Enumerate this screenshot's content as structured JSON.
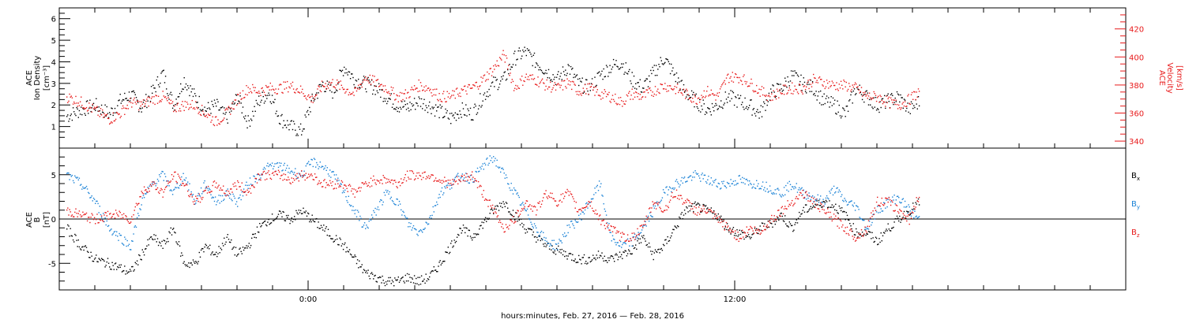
{
  "colors": {
    "black": "#000000",
    "red": "#e8191a",
    "blue": "#1a82d6",
    "background": "#ffffff"
  },
  "xaxis": {
    "label": "hours:minutes, Feb. 27, 2016 — Feb. 28, 2016",
    "range_hours": [
      -7,
      23
    ],
    "ticks": [
      {
        "value": 0,
        "label": "0:00"
      },
      {
        "value": 12,
        "label": "12:00"
      }
    ]
  },
  "chart_data": [
    {
      "type": "scatter",
      "ylabel_lines": [
        "ACE",
        "Ion Density",
        "[cm⁻³]"
      ],
      "ylim": [
        0,
        6.5
      ],
      "yticks": [
        1,
        2,
        3,
        4,
        5,
        6
      ],
      "y2label_lines": [
        "ACE",
        "Velocity",
        "[km/s]"
      ],
      "y2lim": [
        335,
        435
      ],
      "y2ticks": [
        340,
        360,
        380,
        400,
        420
      ],
      "series": [
        {
          "name": "",
          "color": "black",
          "axis": "left",
          "x": [
            -6.8,
            -6.4,
            -6.0,
            -5.6,
            -5.3,
            -5.0,
            -4.7,
            -4.4,
            -4.1,
            -3.8,
            -3.5,
            -3.2,
            -2.9,
            -2.6,
            -2.3,
            -2.0,
            -1.7,
            -1.4,
            -1.1,
            -0.8,
            -0.5,
            -0.2,
            0.1,
            0.4,
            0.7,
            1.0,
            1.3,
            1.6,
            1.9,
            2.2,
            2.5,
            2.8,
            3.1,
            3.4,
            3.7,
            4.0,
            4.3,
            4.6,
            4.9,
            5.2,
            5.5,
            5.8,
            6.1,
            6.4,
            6.7,
            7.0,
            7.3,
            7.6,
            7.9,
            8.2,
            8.5,
            8.8,
            9.1,
            9.4,
            9.7,
            10.0,
            10.3,
            10.6,
            10.9,
            11.2,
            11.5,
            11.8,
            12.1,
            12.4,
            12.7,
            13.0,
            13.3,
            13.6,
            13.9,
            14.2,
            14.5,
            14.8,
            15.1,
            15.4,
            15.7,
            16.0,
            16.3,
            16.6,
            16.9,
            17.2
          ],
          "y": [
            1.5,
            1.8,
            2.0,
            1.6,
            2.2,
            2.5,
            1.9,
            2.6,
            3.5,
            2.0,
            3.2,
            2.4,
            1.8,
            2.0,
            1.4,
            2.4,
            1.2,
            2.2,
            2.6,
            1.4,
            1.0,
            0.8,
            2.2,
            3.0,
            2.6,
            3.8,
            3.2,
            3.0,
            2.8,
            2.4,
            2.0,
            1.9,
            2.2,
            2.0,
            1.7,
            1.4,
            1.8,
            1.6,
            2.4,
            3.0,
            3.2,
            4.2,
            4.5,
            4.0,
            3.6,
            3.2,
            3.8,
            3.0,
            2.8,
            3.4,
            3.8,
            4.0,
            3.2,
            2.8,
            3.5,
            4.2,
            3.4,
            2.6,
            2.2,
            1.8,
            2.0,
            2.4,
            2.2,
            2.0,
            1.6,
            2.6,
            2.8,
            3.4,
            3.0,
            2.8,
            2.2,
            2.0,
            1.6,
            2.8,
            2.4,
            2.0,
            2.2,
            2.4,
            1.8,
            2.2
          ]
        },
        {
          "name": "",
          "color": "red",
          "axis": "right",
          "x": [
            -6.8,
            -6.4,
            -6.0,
            -5.6,
            -5.3,
            -5.0,
            -4.7,
            -4.4,
            -4.1,
            -3.8,
            -3.5,
            -3.2,
            -2.9,
            -2.6,
            -2.3,
            -2.0,
            -1.7,
            -1.4,
            -1.1,
            -0.8,
            -0.5,
            -0.2,
            0.1,
            0.4,
            0.7,
            1.0,
            1.3,
            1.6,
            1.9,
            2.2,
            2.5,
            2.8,
            3.1,
            3.4,
            3.7,
            4.0,
            4.3,
            4.6,
            4.9,
            5.2,
            5.5,
            5.8,
            6.1,
            6.4,
            6.7,
            7.0,
            7.3,
            7.6,
            7.9,
            8.2,
            8.5,
            8.8,
            9.1,
            9.4,
            9.7,
            10.0,
            10.3,
            10.6,
            10.9,
            11.2,
            11.5,
            11.8,
            12.1,
            12.4,
            12.7,
            13.0,
            13.3,
            13.6,
            13.9,
            14.2,
            14.5,
            14.8,
            15.1,
            15.4,
            15.7,
            16.0,
            16.3,
            16.6,
            16.9,
            17.2
          ],
          "y": [
            372,
            368,
            362,
            356,
            360,
            368,
            366,
            370,
            372,
            364,
            366,
            366,
            360,
            354,
            360,
            370,
            378,
            376,
            378,
            378,
            380,
            376,
            370,
            380,
            382,
            378,
            374,
            386,
            382,
            378,
            372,
            374,
            380,
            378,
            372,
            372,
            376,
            378,
            384,
            392,
            402,
            378,
            386,
            384,
            380,
            378,
            382,
            376,
            378,
            374,
            372,
            368,
            374,
            372,
            376,
            380,
            378,
            374,
            370,
            376,
            372,
            386,
            386,
            382,
            376,
            372,
            376,
            378,
            378,
            384,
            382,
            380,
            380,
            378,
            372,
            372,
            368,
            366,
            370,
            376
          ]
        }
      ]
    },
    {
      "type": "scatter",
      "ylabel_lines": [
        "ACE",
        "B",
        "[nT]"
      ],
      "ylim": [
        -8,
        8
      ],
      "yticks": [
        -5,
        0,
        5
      ],
      "zero_line": true,
      "legend": [
        "Bx",
        "By",
        "Bz"
      ],
      "series": [
        {
          "name": "Bx",
          "color": "black",
          "x": [
            -6.8,
            -6.4,
            -6.0,
            -5.6,
            -5.3,
            -5.0,
            -4.7,
            -4.4,
            -4.1,
            -3.8,
            -3.5,
            -3.2,
            -2.9,
            -2.6,
            -2.3,
            -2.0,
            -1.7,
            -1.4,
            -1.1,
            -0.8,
            -0.5,
            -0.2,
            0.1,
            0.4,
            0.7,
            1.0,
            1.3,
            1.6,
            1.9,
            2.2,
            2.5,
            2.8,
            3.1,
            3.4,
            3.7,
            4.0,
            4.3,
            4.6,
            4.9,
            5.2,
            5.5,
            5.8,
            6.1,
            6.4,
            6.7,
            7.0,
            7.3,
            7.6,
            7.9,
            8.2,
            8.5,
            8.8,
            9.1,
            9.4,
            9.7,
            10.0,
            10.3,
            10.6,
            10.9,
            11.2,
            11.5,
            11.8,
            12.1,
            12.4,
            12.7,
            13.0,
            13.3,
            13.6,
            13.9,
            14.2,
            14.5,
            14.8,
            15.1,
            15.4,
            15.7,
            16.0,
            16.3,
            16.6,
            16.9,
            17.2
          ],
          "y": [
            -1,
            -3,
            -4.5,
            -5,
            -5.5,
            -6,
            -4,
            -2,
            -3,
            -1,
            -5,
            -5,
            -3,
            -4,
            -2,
            -4,
            -3,
            -1,
            0,
            0.5,
            0,
            1,
            0,
            -1,
            -2,
            -3,
            -4.5,
            -6,
            -6.5,
            -7,
            -7,
            -6.5,
            -7,
            -6.5,
            -5,
            -3,
            -1,
            -2,
            -0.5,
            1,
            2,
            0.5,
            -1,
            -2,
            -3,
            -3.5,
            -4,
            -4.5,
            -4.5,
            -4,
            -4.5,
            -4,
            -3.5,
            -2,
            -4,
            -3,
            -1,
            1,
            1.5,
            1,
            0.5,
            -1,
            -1.5,
            -2,
            -1,
            -0.5,
            0.5,
            -1,
            1,
            1.5,
            2,
            1.5,
            0.5,
            -1.5,
            -1.5,
            -2.5,
            -1,
            0,
            1,
            2
          ]
        },
        {
          "name": "By",
          "color": "blue",
          "x": [
            -6.8,
            -6.4,
            -6.0,
            -5.6,
            -5.3,
            -5.0,
            -4.7,
            -4.4,
            -4.1,
            -3.8,
            -3.5,
            -3.2,
            -2.9,
            -2.6,
            -2.3,
            -2.0,
            -1.7,
            -1.4,
            -1.1,
            -0.8,
            -0.5,
            -0.2,
            0.1,
            0.4,
            0.7,
            1.0,
            1.3,
            1.6,
            1.9,
            2.2,
            2.5,
            2.8,
            3.1,
            3.4,
            3.7,
            4.0,
            4.3,
            4.6,
            4.9,
            5.2,
            5.5,
            5.8,
            6.1,
            6.4,
            6.7,
            7.0,
            7.3,
            7.6,
            7.9,
            8.2,
            8.5,
            8.8,
            9.1,
            9.4,
            9.7,
            10.0,
            10.3,
            10.6,
            10.9,
            11.2,
            11.5,
            11.8,
            12.1,
            12.4,
            12.7,
            13.0,
            13.3,
            13.6,
            13.9,
            14.2,
            14.5,
            14.8,
            15.1,
            15.4,
            15.7,
            16.0,
            16.3,
            16.6,
            16.9,
            17.2
          ],
          "y": [
            5,
            4,
            2,
            -1,
            -2,
            -3,
            2,
            4,
            5,
            3,
            5,
            2,
            4,
            2,
            3,
            2,
            4,
            5,
            6,
            6,
            5.5,
            5,
            6.5,
            6,
            5,
            3,
            1,
            -1,
            1,
            3,
            2,
            -0.5,
            -1.5,
            0,
            3,
            4,
            5,
            4.5,
            6,
            7,
            5,
            3,
            1,
            -1,
            -2.5,
            -3,
            -1,
            0,
            2,
            4,
            -2,
            -3,
            -2.5,
            -1,
            1,
            3,
            4,
            4.5,
            5,
            4.5,
            4,
            4,
            4.5,
            4,
            4,
            3.5,
            3,
            4,
            3,
            2.5,
            2,
            3.5,
            2,
            1.5,
            -1,
            1,
            2,
            2.5,
            1,
            0
          ]
        },
        {
          "name": "Bz",
          "color": "red",
          "x": [
            -6.8,
            -6.4,
            -6.0,
            -5.6,
            -5.3,
            -5.0,
            -4.7,
            -4.4,
            -4.1,
            -3.8,
            -3.5,
            -3.2,
            -2.9,
            -2.6,
            -2.3,
            -2.0,
            -1.7,
            -1.4,
            -1.1,
            -0.8,
            -0.5,
            -0.2,
            0.1,
            0.4,
            0.7,
            1.0,
            1.3,
            1.6,
            1.9,
            2.2,
            2.5,
            2.8,
            3.1,
            3.4,
            3.7,
            4.0,
            4.3,
            4.6,
            4.9,
            5.2,
            5.5,
            5.8,
            6.1,
            6.4,
            6.7,
            7.0,
            7.3,
            7.6,
            7.9,
            8.2,
            8.5,
            8.8,
            9.1,
            9.4,
            9.7,
            10.0,
            10.3,
            10.6,
            10.9,
            11.2,
            11.5,
            11.8,
            12.1,
            12.4,
            12.7,
            13.0,
            13.3,
            13.6,
            13.9,
            14.2,
            14.5,
            14.8,
            15.1,
            15.4,
            15.7,
            16.0,
            16.3,
            16.6,
            16.9,
            17.2
          ],
          "y": [
            1,
            0.5,
            0,
            0.5,
            0.5,
            0,
            3,
            4,
            3,
            5,
            4,
            2,
            3,
            4,
            3,
            4,
            3,
            5,
            5,
            5,
            4.5,
            5,
            5,
            4,
            4,
            4,
            3,
            4,
            4.5,
            4.5,
            4,
            5,
            5,
            5,
            4.5,
            4,
            4.5,
            5,
            3,
            1,
            -1,
            0,
            2,
            1,
            3,
            2,
            3,
            1,
            2,
            0,
            -1,
            -2,
            -2,
            -1,
            2,
            1,
            3,
            2,
            1,
            1,
            0,
            -1,
            -2,
            -1,
            -1.5,
            0,
            1,
            2,
            3,
            2,
            1,
            0,
            -1,
            -2,
            -1,
            2,
            2,
            1,
            0,
            3
          ]
        }
      ]
    }
  ]
}
